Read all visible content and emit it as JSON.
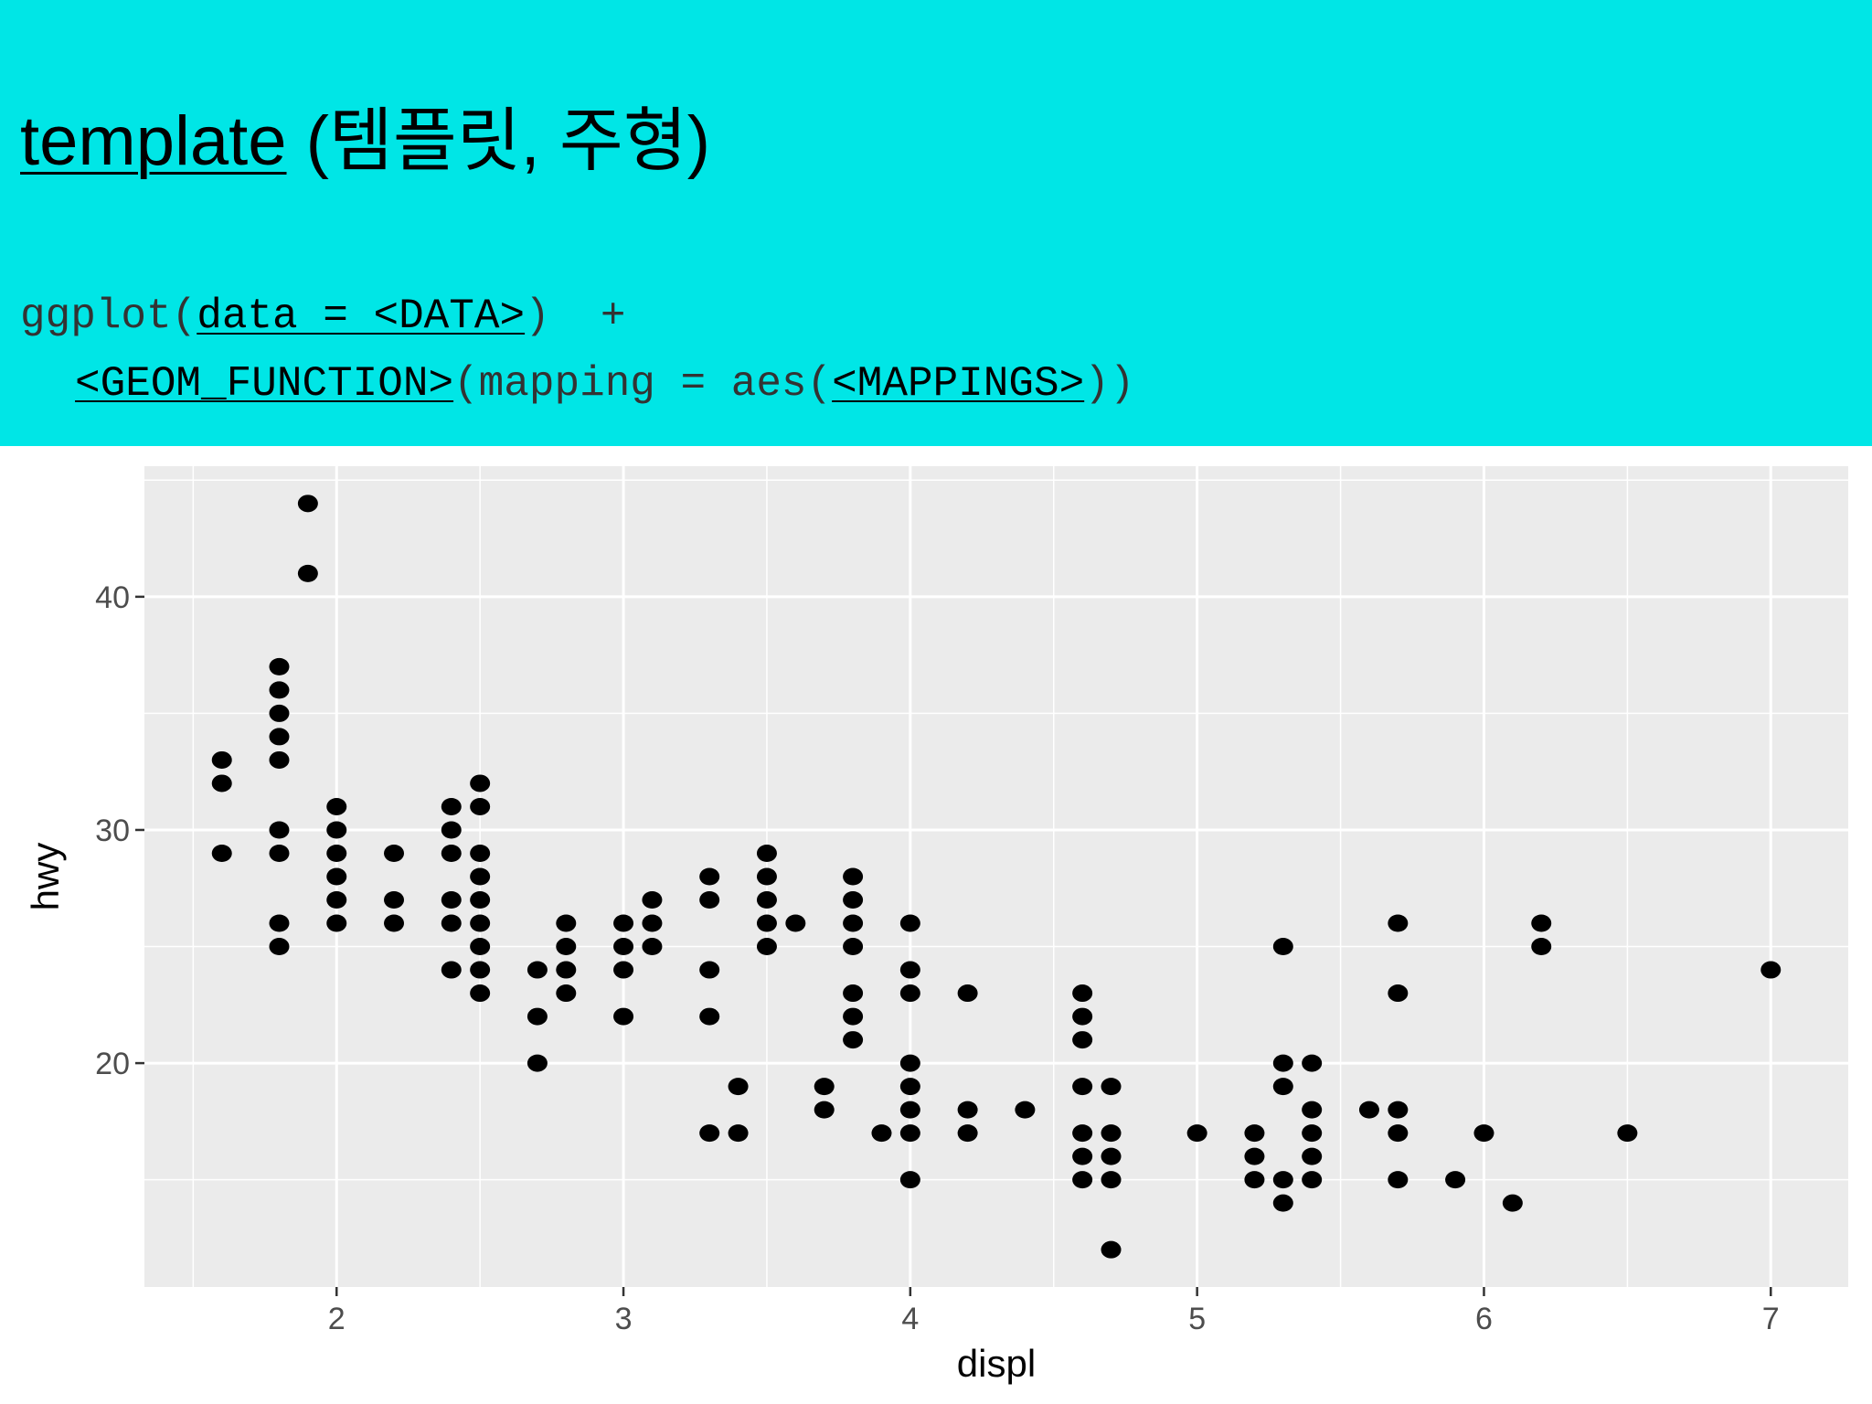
{
  "slide": {
    "title_keyword": "template",
    "title_rest": " (템플릿, 주형)",
    "code": {
      "l1_func": "ggplot(",
      "l1_arg": "data = <DATA>",
      "l1_end": ")  +",
      "l2_geom": "<GEOM_FUNCTION>",
      "l2_mid": "(mapping = aes(",
      "l2_map": "<MAPPINGS>",
      "l2_end": "))"
    }
  },
  "colors": {
    "banner": "#00e6e6",
    "panel": "#ebebeb",
    "grid": "#ffffff",
    "point": "#000000"
  },
  "chart_data": {
    "type": "scatter",
    "xlabel": "displ",
    "ylabel": "hwy",
    "xlim": [
      1.33,
      7.27
    ],
    "ylim": [
      10.4,
      45.6
    ],
    "xticks": [
      2,
      3,
      4,
      5,
      6,
      7
    ],
    "yticks": [
      20,
      30,
      40
    ],
    "grid": true,
    "points": [
      [
        1.6,
        33
      ],
      [
        1.6,
        32
      ],
      [
        1.6,
        29
      ],
      [
        1.8,
        37
      ],
      [
        1.8,
        36
      ],
      [
        1.8,
        35
      ],
      [
        1.8,
        34
      ],
      [
        1.8,
        33
      ],
      [
        1.8,
        30
      ],
      [
        1.8,
        29
      ],
      [
        1.8,
        26
      ],
      [
        1.8,
        25
      ],
      [
        1.9,
        44
      ],
      [
        1.9,
        41
      ],
      [
        2.0,
        31
      ],
      [
        2.0,
        30
      ],
      [
        2.0,
        29
      ],
      [
        2.0,
        28
      ],
      [
        2.0,
        27
      ],
      [
        2.0,
        26
      ],
      [
        2.2,
        29
      ],
      [
        2.2,
        27
      ],
      [
        2.2,
        26
      ],
      [
        2.4,
        31
      ],
      [
        2.4,
        30
      ],
      [
        2.4,
        29
      ],
      [
        2.4,
        27
      ],
      [
        2.4,
        26
      ],
      [
        2.4,
        24
      ],
      [
        2.5,
        32
      ],
      [
        2.5,
        31
      ],
      [
        2.5,
        29
      ],
      [
        2.5,
        28
      ],
      [
        2.5,
        27
      ],
      [
        2.5,
        26
      ],
      [
        2.5,
        25
      ],
      [
        2.5,
        24
      ],
      [
        2.5,
        23
      ],
      [
        2.7,
        24
      ],
      [
        2.7,
        22
      ],
      [
        2.7,
        20
      ],
      [
        2.8,
        26
      ],
      [
        2.8,
        25
      ],
      [
        2.8,
        24
      ],
      [
        2.8,
        23
      ],
      [
        3.0,
        26
      ],
      [
        3.0,
        25
      ],
      [
        3.0,
        24
      ],
      [
        3.0,
        22
      ],
      [
        3.1,
        27
      ],
      [
        3.1,
        26
      ],
      [
        3.1,
        25
      ],
      [
        3.3,
        28
      ],
      [
        3.3,
        27
      ],
      [
        3.3,
        24
      ],
      [
        3.3,
        22
      ],
      [
        3.3,
        17
      ],
      [
        3.4,
        19
      ],
      [
        3.4,
        17
      ],
      [
        3.5,
        29
      ],
      [
        3.5,
        28
      ],
      [
        3.5,
        27
      ],
      [
        3.5,
        26
      ],
      [
        3.5,
        25
      ],
      [
        3.6,
        26
      ],
      [
        3.7,
        19
      ],
      [
        3.7,
        18
      ],
      [
        3.8,
        28
      ],
      [
        3.8,
        27
      ],
      [
        3.8,
        26
      ],
      [
        3.8,
        25
      ],
      [
        3.8,
        23
      ],
      [
        3.8,
        22
      ],
      [
        3.8,
        21
      ],
      [
        3.9,
        17
      ],
      [
        4.0,
        26
      ],
      [
        4.0,
        24
      ],
      [
        4.0,
        23
      ],
      [
        4.0,
        20
      ],
      [
        4.0,
        19
      ],
      [
        4.0,
        18
      ],
      [
        4.0,
        17
      ],
      [
        4.0,
        15
      ],
      [
        4.2,
        23
      ],
      [
        4.2,
        18
      ],
      [
        4.2,
        17
      ],
      [
        4.4,
        18
      ],
      [
        4.6,
        23
      ],
      [
        4.6,
        22
      ],
      [
        4.6,
        21
      ],
      [
        4.6,
        19
      ],
      [
        4.6,
        17
      ],
      [
        4.6,
        16
      ],
      [
        4.6,
        15
      ],
      [
        4.7,
        19
      ],
      [
        4.7,
        17
      ],
      [
        4.7,
        16
      ],
      [
        4.7,
        15
      ],
      [
        4.7,
        12
      ],
      [
        5.0,
        17
      ],
      [
        5.2,
        17
      ],
      [
        5.2,
        16
      ],
      [
        5.2,
        15
      ],
      [
        5.3,
        25
      ],
      [
        5.3,
        20
      ],
      [
        5.3,
        19
      ],
      [
        5.3,
        15
      ],
      [
        5.3,
        14
      ],
      [
        5.4,
        20
      ],
      [
        5.4,
        18
      ],
      [
        5.4,
        17
      ],
      [
        5.4,
        16
      ],
      [
        5.4,
        15
      ],
      [
        5.6,
        18
      ],
      [
        5.7,
        26
      ],
      [
        5.7,
        23
      ],
      [
        5.7,
        18
      ],
      [
        5.7,
        17
      ],
      [
        5.7,
        15
      ],
      [
        5.9,
        15
      ],
      [
        6.0,
        17
      ],
      [
        6.1,
        14
      ],
      [
        6.2,
        26
      ],
      [
        6.2,
        25
      ],
      [
        6.5,
        17
      ],
      [
        7.0,
        24
      ]
    ]
  }
}
